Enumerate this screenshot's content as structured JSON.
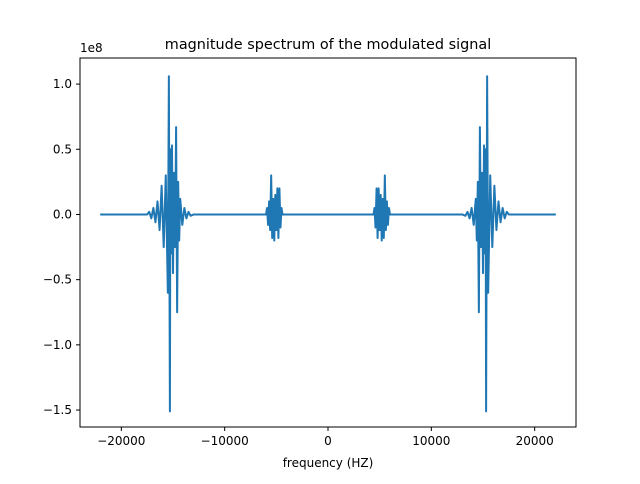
{
  "chart_data": {
    "type": "line",
    "title": "magnitude spectrum of the modulated signal",
    "xlabel": "frequency (HZ)",
    "ylabel": "",
    "y_scale_label": "1e8",
    "xlim": [
      -24000,
      24000
    ],
    "ylim": [
      -1.63,
      1.2
    ],
    "x_ticks": [
      -20000,
      -10000,
      0,
      10000,
      20000
    ],
    "x_tick_labels": [
      "−20000",
      "−10000",
      "0",
      "10000",
      "20000"
    ],
    "y_ticks": [
      -1.5,
      -1.0,
      -0.5,
      0.0,
      0.5,
      1.0
    ],
    "y_tick_labels": [
      "−1.5",
      "−1.0",
      "−0.5",
      "0.0",
      "0.5",
      "1.0"
    ],
    "grid": false,
    "line_color": "#1f77b4",
    "series": [
      {
        "x": [
          -22050,
          -17500,
          -17300,
          -17100,
          -16900,
          -16700,
          -16500,
          -16300,
          -16100,
          -15900,
          -15700,
          -15500,
          -15400,
          -15300,
          -15250,
          -15200,
          -15100,
          -15000,
          -14900,
          -14800,
          -14700,
          -14600,
          -14500,
          -14400,
          -14300,
          -14100,
          -13900,
          -13700,
          -13500,
          -13300,
          -13000,
          -6000,
          -5900,
          -5800,
          -5700,
          -5600,
          -5500,
          -5400,
          -5300,
          -5200,
          -5100,
          -5000,
          -4900,
          -4800,
          -4700,
          -4600,
          -4500,
          -4400,
          4400,
          4500,
          4600,
          4700,
          4800,
          4900,
          5000,
          5100,
          5200,
          5300,
          5400,
          5500,
          5600,
          5700,
          5800,
          5900,
          6000,
          13000,
          13300,
          13500,
          13700,
          13900,
          14100,
          14300,
          14400,
          14500,
          14600,
          14700,
          14800,
          14900,
          15000,
          15100,
          15200,
          15250,
          15300,
          15400,
          15500,
          15700,
          15900,
          16100,
          16300,
          16500,
          16700,
          16900,
          17100,
          17300,
          17500,
          22050
        ],
        "y": [
          0.0,
          0.0,
          0.02,
          -0.03,
          0.05,
          -0.06,
          0.1,
          -0.12,
          0.22,
          -0.25,
          0.3,
          -0.6,
          1.06,
          -1.51,
          0.5,
          -0.3,
          0.53,
          -0.45,
          0.32,
          -0.25,
          0.67,
          -0.75,
          0.25,
          -0.2,
          0.12,
          -0.08,
          0.05,
          -0.03,
          0.02,
          -0.01,
          0.0,
          0.0,
          0.05,
          -0.08,
          0.1,
          -0.12,
          0.3,
          -0.18,
          0.12,
          -0.2,
          0.15,
          -0.12,
          0.2,
          -0.18,
          0.2,
          -0.1,
          0.05,
          0.0,
          0.0,
          0.05,
          -0.1,
          0.2,
          -0.18,
          0.2,
          -0.12,
          0.15,
          -0.2,
          0.12,
          -0.18,
          0.3,
          -0.12,
          0.1,
          -0.08,
          0.05,
          0.0,
          0.0,
          -0.01,
          0.02,
          -0.03,
          0.05,
          -0.08,
          0.12,
          -0.2,
          0.25,
          -0.75,
          0.67,
          -0.25,
          0.32,
          -0.45,
          0.53,
          -0.3,
          0.5,
          -1.51,
          1.06,
          -0.6,
          0.3,
          -0.25,
          0.22,
          -0.12,
          0.1,
          -0.06,
          0.05,
          -0.03,
          0.02,
          0.0,
          0.0
        ]
      }
    ]
  }
}
